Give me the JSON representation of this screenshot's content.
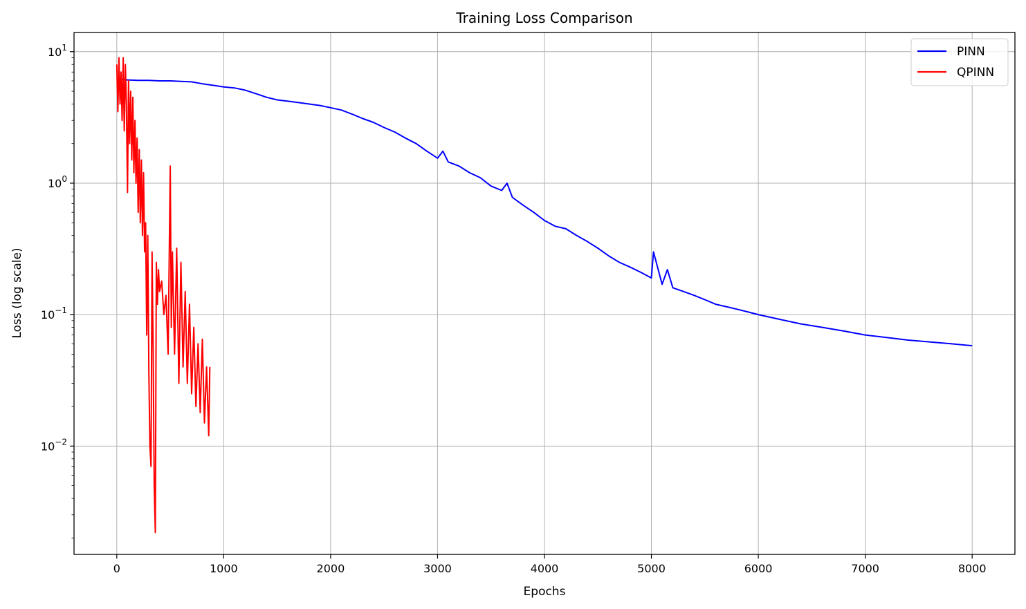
{
  "chart_data": {
    "type": "line",
    "title": "Training Loss Comparison",
    "xlabel": "Epochs",
    "ylabel": "Loss (log scale)",
    "yscale": "log",
    "grid": true,
    "legend_position": "top-right",
    "xlim": [
      -400,
      8400
    ],
    "ylim": [
      0.0015,
      14
    ],
    "x_ticks": [
      0,
      1000,
      2000,
      3000,
      4000,
      5000,
      6000,
      7000,
      8000
    ],
    "x_tick_labels": [
      "0",
      "1000",
      "2000",
      "3000",
      "4000",
      "5000",
      "6000",
      "7000",
      "8000"
    ],
    "y_ticks": [
      0.01,
      0.1,
      1,
      10
    ],
    "y_tick_labels": [
      {
        "base": "10",
        "exp": "−2"
      },
      {
        "base": "10",
        "exp": "−1"
      },
      {
        "base": "10",
        "exp": "0"
      },
      {
        "base": "10",
        "exp": "1"
      }
    ],
    "series": [
      {
        "name": "PINN",
        "color": "#0000ff",
        "x": [
          0,
          50,
          100,
          200,
          300,
          400,
          500,
          600,
          700,
          800,
          900,
          1000,
          1100,
          1200,
          1300,
          1400,
          1500,
          1600,
          1700,
          1800,
          1900,
          2000,
          2100,
          2200,
          2300,
          2400,
          2500,
          2600,
          2700,
          2800,
          2900,
          3000,
          3050,
          3100,
          3200,
          3300,
          3400,
          3500,
          3600,
          3650,
          3700,
          3800,
          3900,
          4000,
          4100,
          4200,
          4300,
          4400,
          4500,
          4600,
          4700,
          4800,
          4900,
          5000,
          5020,
          5100,
          5150,
          5200,
          5300,
          5400,
          5500,
          5600,
          5700,
          5800,
          5900,
          6000,
          6200,
          6400,
          6600,
          6800,
          7000,
          7200,
          7400,
          7600,
          7800,
          8000
        ],
        "values": [
          6.2,
          6.15,
          6.1,
          6.05,
          6.05,
          6.0,
          6.0,
          5.95,
          5.9,
          5.7,
          5.55,
          5.4,
          5.3,
          5.1,
          4.8,
          4.5,
          4.3,
          4.2,
          4.1,
          4.0,
          3.9,
          3.75,
          3.6,
          3.35,
          3.1,
          2.9,
          2.65,
          2.45,
          2.2,
          2.0,
          1.75,
          1.55,
          1.75,
          1.45,
          1.35,
          1.2,
          1.1,
          0.95,
          0.88,
          1.0,
          0.78,
          0.68,
          0.6,
          0.52,
          0.47,
          0.45,
          0.4,
          0.36,
          0.32,
          0.28,
          0.25,
          0.23,
          0.21,
          0.19,
          0.3,
          0.17,
          0.22,
          0.16,
          0.15,
          0.14,
          0.13,
          0.12,
          0.115,
          0.11,
          0.105,
          0.1,
          0.092,
          0.085,
          0.08,
          0.075,
          0.07,
          0.067,
          0.064,
          0.062,
          0.06,
          0.058
        ]
      },
      {
        "name": "QPINN",
        "color": "#ff0000",
        "x": [
          0,
          10,
          20,
          30,
          40,
          50,
          60,
          70,
          80,
          90,
          100,
          110,
          120,
          130,
          140,
          150,
          160,
          170,
          180,
          190,
          200,
          210,
          220,
          230,
          240,
          250,
          260,
          270,
          280,
          290,
          300,
          310,
          320,
          330,
          340,
          350,
          360,
          370,
          380,
          390,
          400,
          420,
          440,
          460,
          480,
          500,
          510,
          520,
          540,
          560,
          580,
          600,
          620,
          640,
          660,
          680,
          700,
          720,
          740,
          760,
          780,
          800,
          820,
          840,
          860,
          870
        ],
        "values": [
          8.0,
          3.5,
          9.0,
          4.0,
          7.0,
          3.0,
          9.0,
          2.5,
          8.0,
          4.0,
          0.85,
          6.0,
          2.0,
          5.0,
          1.5,
          4.5,
          1.2,
          3.0,
          1.0,
          2.2,
          0.6,
          1.8,
          0.5,
          1.5,
          0.4,
          1.2,
          0.3,
          0.5,
          0.07,
          0.4,
          0.035,
          0.01,
          0.007,
          0.3,
          0.05,
          0.005,
          0.0022,
          0.25,
          0.12,
          0.22,
          0.15,
          0.18,
          0.1,
          0.14,
          0.05,
          1.35,
          0.08,
          0.3,
          0.05,
          0.32,
          0.03,
          0.25,
          0.04,
          0.15,
          0.03,
          0.12,
          0.025,
          0.08,
          0.02,
          0.06,
          0.018,
          0.065,
          0.015,
          0.04,
          0.012,
          0.04
        ]
      }
    ]
  }
}
